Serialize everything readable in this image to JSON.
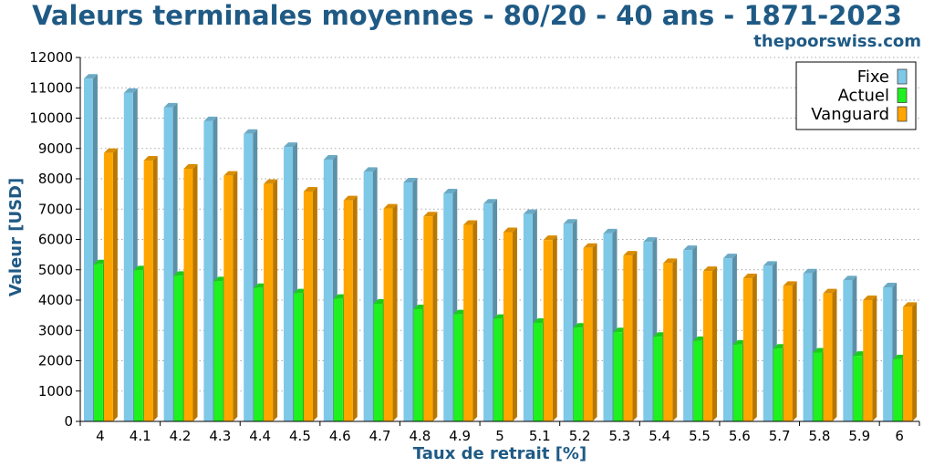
{
  "chart_data": {
    "type": "bar",
    "title": "Valeurs terminales moyennes - 80/20 - 40 ans - 1871-2023",
    "subtitle": "thepoorswiss.com",
    "xlabel": "Taux de retrait [%]",
    "ylabel": "Valeur [USD]",
    "ylim": [
      0,
      12000
    ],
    "yticks": [
      "0",
      "1000",
      "2000",
      "3000",
      "4000",
      "5000",
      "6000",
      "7000",
      "8000",
      "9000",
      "10000",
      "11000",
      "12000"
    ],
    "grid": true,
    "legend_position": "top-right",
    "categories": [
      "4",
      "4.1",
      "4.2",
      "4.3",
      "4.4",
      "4.5",
      "4.6",
      "4.7",
      "4.8",
      "4.9",
      "5",
      "5.1",
      "5.2",
      "5.3",
      "5.4",
      "5.5",
      "5.6",
      "5.7",
      "5.8",
      "5.9",
      "6"
    ],
    "series": [
      {
        "name": "Fixe",
        "color": "#7ec8e8",
        "values": [
          11300,
          10830,
          10350,
          9900,
          9480,
          9050,
          8630,
          8230,
          7880,
          7520,
          7180,
          6840,
          6520,
          6200,
          5920,
          5650,
          5380,
          5130,
          4880,
          4650,
          4420
        ]
      },
      {
        "name": "Actuel",
        "color": "#1ff01f",
        "values": [
          5180,
          4980,
          4800,
          4620,
          4400,
          4220,
          4040,
          3880,
          3700,
          3530,
          3380,
          3250,
          3090,
          2940,
          2790,
          2650,
          2530,
          2400,
          2270,
          2160,
          2050
        ]
      },
      {
        "name": "Vanguard",
        "color": "#ffa500",
        "values": [
          8850,
          8600,
          8330,
          8100,
          7830,
          7580,
          7290,
          7020,
          6760,
          6480,
          6240,
          5980,
          5720,
          5470,
          5220,
          4960,
          4720,
          4470,
          4220,
          4000,
          3780
        ]
      }
    ]
  }
}
